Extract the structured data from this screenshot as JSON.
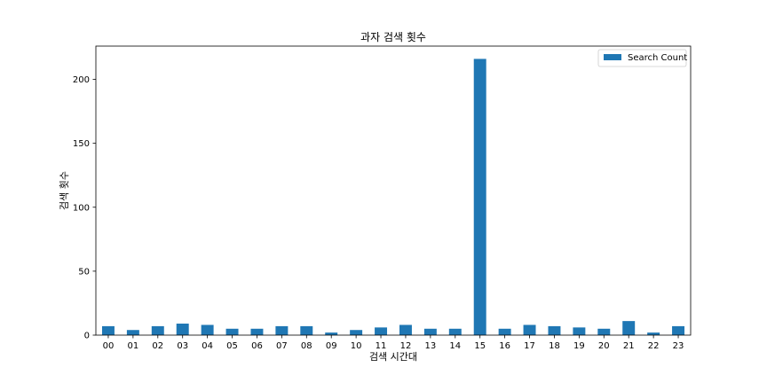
{
  "chart_data": {
    "type": "bar",
    "title": "과자 검색 횟수",
    "xlabel": "검색 시간대",
    "ylabel": "검색 횟수",
    "categories": [
      "00",
      "01",
      "02",
      "03",
      "04",
      "05",
      "06",
      "07",
      "08",
      "09",
      "10",
      "11",
      "12",
      "13",
      "14",
      "15",
      "16",
      "17",
      "18",
      "19",
      "20",
      "21",
      "22",
      "23"
    ],
    "series": [
      {
        "name": "Search Count",
        "color": "#1f77b4",
        "values": [
          7,
          4,
          7,
          9,
          8,
          5,
          5,
          7,
          7,
          2,
          4,
          6,
          8,
          5,
          5,
          216,
          5,
          8,
          7,
          6,
          5,
          11,
          2,
          7
        ]
      }
    ],
    "ylim": [
      0,
      226
    ],
    "yticks": [
      0,
      50,
      100,
      150,
      200
    ],
    "grid": false,
    "legend_position": "top-right"
  }
}
